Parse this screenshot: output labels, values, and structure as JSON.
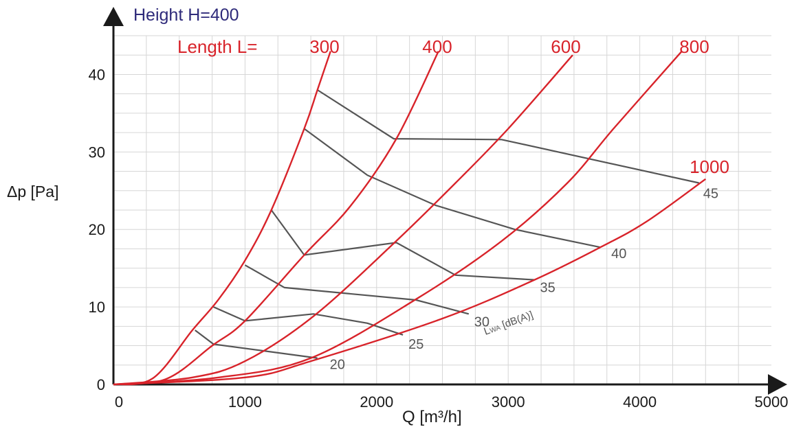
{
  "chart_data": {
    "type": "line",
    "height_title": "Height H=400",
    "length_prefix": "Length  L=",
    "xlabel": "Q [m³/h]",
    "ylabel": "Δp [Pa]",
    "noise_axis_label_main": "L",
    "noise_axis_label_sub": "WA",
    "noise_axis_label_unit": " [dB(A)]",
    "xlim": [
      0,
      5000
    ],
    "ylim": [
      0,
      45
    ],
    "x_ticks": [
      "0",
      "1000",
      "2000",
      "3000",
      "4000",
      "5000"
    ],
    "y_ticks": [
      "0",
      "10",
      "20",
      "30",
      "40"
    ],
    "grid": true,
    "colors": {
      "length": "#d8232a",
      "noise": "#555555",
      "title": "#2e2a7a",
      "grid": "#d6d6d6",
      "axis": "#1a1a1a"
    },
    "series": [
      {
        "name": "300",
        "points": [
          [
            0,
            0
          ],
          [
            300,
            0.8
          ],
          [
            600,
            7
          ],
          [
            800,
            11
          ],
          [
            1000,
            16
          ],
          [
            1200,
            22.5
          ],
          [
            1450,
            33
          ],
          [
            1550,
            38
          ],
          [
            1650,
            43
          ]
        ]
      },
      {
        "name": "400",
        "points": [
          [
            0,
            0
          ],
          [
            400,
            0.7
          ],
          [
            750,
            5
          ],
          [
            1000,
            8.2
          ],
          [
            1450,
            16.7
          ],
          [
            1800,
            23
          ],
          [
            2150,
            31.7
          ],
          [
            2470,
            43
          ]
        ]
      },
      {
        "name": "600",
        "points": [
          [
            0,
            0
          ],
          [
            600,
            0.9
          ],
          [
            1000,
            3
          ],
          [
            1520,
            8.8
          ],
          [
            2130,
            18.2
          ],
          [
            2600,
            26
          ],
          [
            3000,
            33
          ],
          [
            3490,
            42.5
          ]
        ]
      },
      {
        "name": "800",
        "points": [
          [
            0,
            0
          ],
          [
            800,
            0.9
          ],
          [
            1500,
            3.4
          ],
          [
            2300,
            11
          ],
          [
            2950,
            18.5
          ],
          [
            3450,
            26
          ],
          [
            3800,
            33
          ],
          [
            4320,
            43
          ]
        ]
      },
      {
        "name": "1000",
        "points": [
          [
            0,
            0
          ],
          [
            1000,
            0.9
          ],
          [
            1500,
            3
          ],
          [
            2500,
            8.5
          ],
          [
            3200,
            13.5
          ],
          [
            3700,
            17.7
          ],
          [
            4050,
            21
          ],
          [
            4500,
            26.5
          ]
        ]
      }
    ],
    "noise_lines": [
      {
        "label": "20",
        "points": [
          [
            620,
            7
          ],
          [
            760,
            5.2
          ],
          [
            1550,
            3.4
          ]
        ]
      },
      {
        "label": "25",
        "points": [
          [
            760,
            10
          ],
          [
            1000,
            8.2
          ],
          [
            1520,
            9.1
          ],
          [
            1930,
            7.9
          ],
          [
            2200,
            6.4
          ]
        ]
      },
      {
        "label": "30",
        "points": [
          [
            1000,
            15.4
          ],
          [
            1300,
            12.5
          ],
          [
            2300,
            10.9
          ],
          [
            2700,
            9.1
          ]
        ]
      },
      {
        "label": "35",
        "points": [
          [
            1200,
            22.5
          ],
          [
            1450,
            16.7
          ],
          [
            2150,
            18.3
          ],
          [
            2600,
            14.1
          ],
          [
            3200,
            13.5
          ]
        ]
      },
      {
        "label": "40",
        "points": [
          [
            1450,
            33
          ],
          [
            1930,
            27
          ],
          [
            2450,
            23.1
          ],
          [
            3050,
            20
          ],
          [
            3700,
            17.7
          ]
        ]
      },
      {
        "label": "45",
        "points": [
          [
            1550,
            38
          ],
          [
            2130,
            31.7
          ],
          [
            2950,
            31.6
          ],
          [
            4450,
            26
          ]
        ]
      }
    ]
  }
}
